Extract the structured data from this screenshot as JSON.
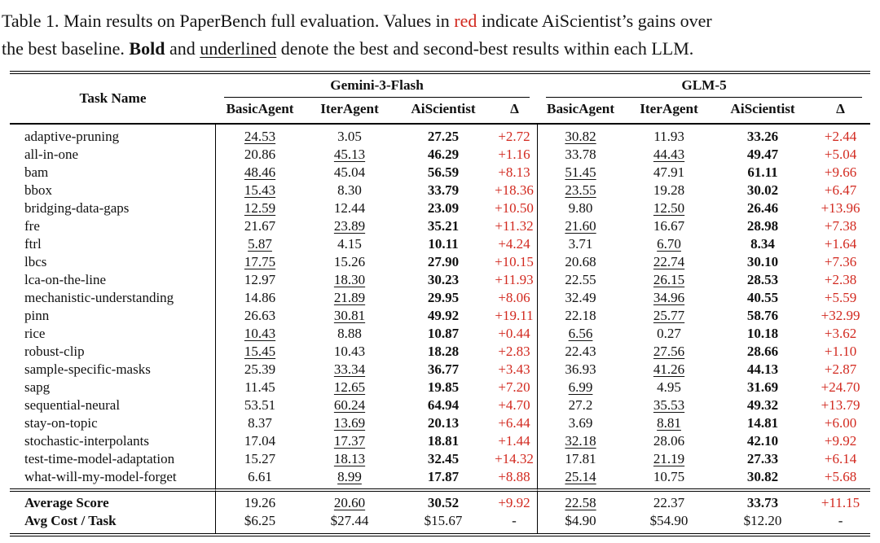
{
  "colors": {
    "accent_red": "#d2291f",
    "ink": "#111111"
  },
  "caption": {
    "line1": {
      "part1": "Table 1. Main results on PaperBench full evaluation. Values in ",
      "red_word": "red",
      "part2": " indicate AiScientist’s gains over"
    },
    "line2": {
      "part1": "the best baseline. ",
      "bold_word": "Bold",
      "part2": " and ",
      "underlined_word": "underlined",
      "part3": " denote the best and second-best results within each LLM."
    }
  },
  "table": {
    "task_header": "Task Name",
    "groups": [
      {
        "name": "Gemini-3-Flash",
        "columns": [
          "BasicAgent",
          "IterAgent",
          "AiScientist",
          "Δ"
        ]
      },
      {
        "name": "GLM-5",
        "columns": [
          "BasicAgent",
          "IterAgent",
          "AiScientist",
          "Δ"
        ]
      }
    ],
    "rows": [
      {
        "name": "adaptive-pruning",
        "cells": [
          [
            "24.53",
            "u"
          ],
          [
            "3.05",
            ""
          ],
          [
            "27.25",
            "b"
          ],
          [
            "+2.72",
            "r"
          ],
          [
            "30.82",
            "u"
          ],
          [
            "11.93",
            ""
          ],
          [
            "33.26",
            "b"
          ],
          [
            "+2.44",
            "r"
          ]
        ]
      },
      {
        "name": "all-in-one",
        "cells": [
          [
            "20.86",
            ""
          ],
          [
            "45.13",
            "u"
          ],
          [
            "46.29",
            "b"
          ],
          [
            "+1.16",
            "r"
          ],
          [
            "33.78",
            ""
          ],
          [
            "44.43",
            "u"
          ],
          [
            "49.47",
            "b"
          ],
          [
            "+5.04",
            "r"
          ]
        ]
      },
      {
        "name": "bam",
        "cells": [
          [
            "48.46",
            "u"
          ],
          [
            "45.04",
            ""
          ],
          [
            "56.59",
            "b"
          ],
          [
            "+8.13",
            "r"
          ],
          [
            "51.45",
            "u"
          ],
          [
            "47.91",
            ""
          ],
          [
            "61.11",
            "b"
          ],
          [
            "+9.66",
            "r"
          ]
        ]
      },
      {
        "name": "bbox",
        "cells": [
          [
            "15.43",
            "u"
          ],
          [
            "8.30",
            ""
          ],
          [
            "33.79",
            "b"
          ],
          [
            "+18.36",
            "r"
          ],
          [
            "23.55",
            "u"
          ],
          [
            "19.28",
            ""
          ],
          [
            "30.02",
            "b"
          ],
          [
            "+6.47",
            "r"
          ]
        ]
      },
      {
        "name": "bridging-data-gaps",
        "cells": [
          [
            "12.59",
            "u"
          ],
          [
            "12.44",
            ""
          ],
          [
            "23.09",
            "b"
          ],
          [
            "+10.50",
            "r"
          ],
          [
            "9.80",
            ""
          ],
          [
            "12.50",
            "u"
          ],
          [
            "26.46",
            "b"
          ],
          [
            "+13.96",
            "r"
          ]
        ]
      },
      {
        "name": "fre",
        "cells": [
          [
            "21.67",
            ""
          ],
          [
            "23.89",
            "u"
          ],
          [
            "35.21",
            "b"
          ],
          [
            "+11.32",
            "r"
          ],
          [
            "21.60",
            "u"
          ],
          [
            "16.67",
            ""
          ],
          [
            "28.98",
            "b"
          ],
          [
            "+7.38",
            "r"
          ]
        ]
      },
      {
        "name": "ftrl",
        "cells": [
          [
            "5.87",
            "u"
          ],
          [
            "4.15",
            ""
          ],
          [
            "10.11",
            "b"
          ],
          [
            "+4.24",
            "r"
          ],
          [
            "3.71",
            ""
          ],
          [
            "6.70",
            "u"
          ],
          [
            "8.34",
            "b"
          ],
          [
            "+1.64",
            "r"
          ]
        ]
      },
      {
        "name": "lbcs",
        "cells": [
          [
            "17.75",
            "u"
          ],
          [
            "15.26",
            ""
          ],
          [
            "27.90",
            "b"
          ],
          [
            "+10.15",
            "r"
          ],
          [
            "20.68",
            ""
          ],
          [
            "22.74",
            "u"
          ],
          [
            "30.10",
            "b"
          ],
          [
            "+7.36",
            "r"
          ]
        ]
      },
      {
        "name": "lca-on-the-line",
        "cells": [
          [
            "12.97",
            ""
          ],
          [
            "18.30",
            "u"
          ],
          [
            "30.23",
            "b"
          ],
          [
            "+11.93",
            "r"
          ],
          [
            "22.55",
            ""
          ],
          [
            "26.15",
            "u"
          ],
          [
            "28.53",
            "b"
          ],
          [
            "+2.38",
            "r"
          ]
        ]
      },
      {
        "name": "mechanistic-understanding",
        "cells": [
          [
            "14.86",
            ""
          ],
          [
            "21.89",
            "u"
          ],
          [
            "29.95",
            "b"
          ],
          [
            "+8.06",
            "r"
          ],
          [
            "32.49",
            ""
          ],
          [
            "34.96",
            "u"
          ],
          [
            "40.55",
            "b"
          ],
          [
            "+5.59",
            "r"
          ]
        ]
      },
      {
        "name": "pinn",
        "cells": [
          [
            "26.63",
            ""
          ],
          [
            "30.81",
            "u"
          ],
          [
            "49.92",
            "b"
          ],
          [
            "+19.11",
            "r"
          ],
          [
            "22.18",
            ""
          ],
          [
            "25.77",
            "u"
          ],
          [
            "58.76",
            "b"
          ],
          [
            "+32.99",
            "r"
          ]
        ]
      },
      {
        "name": "rice",
        "cells": [
          [
            "10.43",
            "u"
          ],
          [
            "8.88",
            ""
          ],
          [
            "10.87",
            "b"
          ],
          [
            "+0.44",
            "r"
          ],
          [
            "6.56",
            "u"
          ],
          [
            "0.27",
            ""
          ],
          [
            "10.18",
            "b"
          ],
          [
            "+3.62",
            "r"
          ]
        ]
      },
      {
        "name": "robust-clip",
        "cells": [
          [
            "15.45",
            "u"
          ],
          [
            "10.43",
            ""
          ],
          [
            "18.28",
            "b"
          ],
          [
            "+2.83",
            "r"
          ],
          [
            "22.43",
            ""
          ],
          [
            "27.56",
            "u"
          ],
          [
            "28.66",
            "b"
          ],
          [
            "+1.10",
            "r"
          ]
        ]
      },
      {
        "name": "sample-specific-masks",
        "cells": [
          [
            "25.39",
            ""
          ],
          [
            "33.34",
            "u"
          ],
          [
            "36.77",
            "b"
          ],
          [
            "+3.43",
            "r"
          ],
          [
            "36.93",
            ""
          ],
          [
            "41.26",
            "u"
          ],
          [
            "44.13",
            "b"
          ],
          [
            "+2.87",
            "r"
          ]
        ]
      },
      {
        "name": "sapg",
        "cells": [
          [
            "11.45",
            ""
          ],
          [
            "12.65",
            "u"
          ],
          [
            "19.85",
            "b"
          ],
          [
            "+7.20",
            "r"
          ],
          [
            "6.99",
            "u"
          ],
          [
            "4.95",
            ""
          ],
          [
            "31.69",
            "b"
          ],
          [
            "+24.70",
            "r"
          ]
        ]
      },
      {
        "name": "sequential-neural",
        "cells": [
          [
            "53.51",
            ""
          ],
          [
            "60.24",
            "u"
          ],
          [
            "64.94",
            "b"
          ],
          [
            "+4.70",
            "r"
          ],
          [
            "27.2",
            ""
          ],
          [
            "35.53",
            "u"
          ],
          [
            "49.32",
            "b"
          ],
          [
            "+13.79",
            "r"
          ]
        ]
      },
      {
        "name": "stay-on-topic",
        "cells": [
          [
            "8.37",
            ""
          ],
          [
            "13.69",
            "u"
          ],
          [
            "20.13",
            "b"
          ],
          [
            "+6.44",
            "r"
          ],
          [
            "3.69",
            ""
          ],
          [
            "8.81",
            "u"
          ],
          [
            "14.81",
            "b"
          ],
          [
            "+6.00",
            "r"
          ]
        ]
      },
      {
        "name": "stochastic-interpolants",
        "cells": [
          [
            "17.04",
            ""
          ],
          [
            "17.37",
            "u"
          ],
          [
            "18.81",
            "b"
          ],
          [
            "+1.44",
            "r"
          ],
          [
            "32.18",
            "u"
          ],
          [
            "28.06",
            ""
          ],
          [
            "42.10",
            "b"
          ],
          [
            "+9.92",
            "r"
          ]
        ]
      },
      {
        "name": "test-time-model-adaptation",
        "cells": [
          [
            "15.27",
            ""
          ],
          [
            "18.13",
            "u"
          ],
          [
            "32.45",
            "b"
          ],
          [
            "+14.32",
            "r"
          ],
          [
            "17.81",
            ""
          ],
          [
            "21.19",
            "u"
          ],
          [
            "27.33",
            "b"
          ],
          [
            "+6.14",
            "r"
          ]
        ]
      },
      {
        "name": "what-will-my-model-forget",
        "cells": [
          [
            "6.61",
            ""
          ],
          [
            "8.99",
            "u"
          ],
          [
            "17.87",
            "b"
          ],
          [
            "+8.88",
            "r"
          ],
          [
            "25.14",
            "u"
          ],
          [
            "10.75",
            ""
          ],
          [
            "30.82",
            "b"
          ],
          [
            "+5.68",
            "r"
          ]
        ]
      }
    ],
    "summary_rows": [
      {
        "name": "Average Score",
        "bold": true,
        "cells": [
          [
            "19.26",
            ""
          ],
          [
            "20.60",
            "u"
          ],
          [
            "30.52",
            "b"
          ],
          [
            "+9.92",
            "r"
          ],
          [
            "22.58",
            "u"
          ],
          [
            "22.37",
            ""
          ],
          [
            "33.73",
            "b"
          ],
          [
            "+11.15",
            "r"
          ]
        ]
      },
      {
        "name": "Avg Cost / Task",
        "bold": true,
        "cells": [
          [
            "$6.25",
            ""
          ],
          [
            "$27.44",
            ""
          ],
          [
            "$15.67",
            ""
          ],
          [
            "-",
            ""
          ],
          [
            "$4.90",
            ""
          ],
          [
            "$54.90",
            ""
          ],
          [
            "$12.20",
            ""
          ],
          [
            "-",
            ""
          ]
        ]
      }
    ]
  }
}
